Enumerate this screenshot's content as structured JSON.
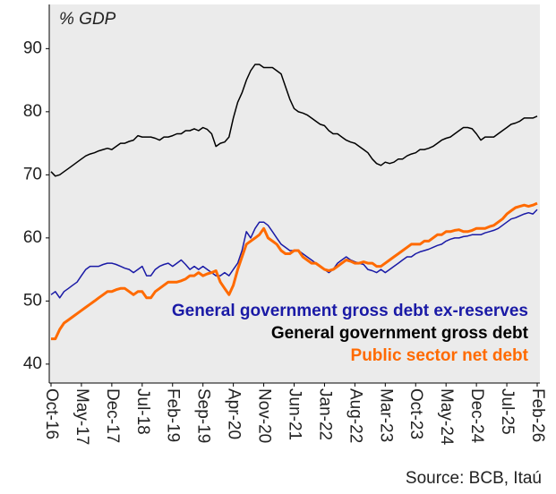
{
  "chart_data": {
    "type": "line",
    "y_label": "% GDP",
    "source": "Source: BCB, Itaú",
    "categories": [
      "Oct-16",
      null,
      null,
      null,
      null,
      null,
      null,
      "May-17",
      null,
      null,
      null,
      null,
      null,
      null,
      "Dec-17",
      null,
      null,
      null,
      null,
      null,
      null,
      "Jul-18",
      null,
      null,
      null,
      null,
      null,
      null,
      "Feb-19",
      null,
      null,
      null,
      null,
      null,
      null,
      "Sep-19",
      null,
      null,
      null,
      null,
      null,
      null,
      "Apr-20",
      null,
      null,
      null,
      null,
      null,
      null,
      "Nov-20",
      null,
      null,
      null,
      null,
      null,
      null,
      "Jun-21",
      null,
      null,
      null,
      null,
      null,
      null,
      "Jan-22",
      null,
      null,
      null,
      null,
      null,
      null,
      "Aug-22",
      null,
      null,
      null,
      null,
      null,
      null,
      "Mar-23",
      null,
      null,
      null,
      null,
      null,
      null,
      "Oct-23",
      null,
      null,
      null,
      null,
      null,
      null,
      "May-24",
      null,
      null,
      null,
      null,
      null,
      null,
      "Dec-24",
      null,
      null,
      null,
      null,
      null,
      null,
      "Jul-25",
      null,
      null,
      null,
      null,
      null,
      null,
      "Feb-26"
    ],
    "series": [
      {
        "name": "General government gross debt ex-reserves",
        "color": "#1a1aa6",
        "width": 1.5,
        "values": [
          51,
          51.5,
          50.5,
          51.5,
          52,
          52.5,
          53,
          54,
          55,
          55.5,
          55.5,
          55.5,
          55.8,
          56,
          56,
          55.8,
          55.5,
          55.2,
          55,
          54.5,
          55,
          55.5,
          54,
          54,
          55,
          55.5,
          55.8,
          56,
          55.5,
          56,
          56.5,
          55.8,
          55,
          55.5,
          55,
          55.5,
          55,
          54.5,
          54,
          54,
          54.5,
          54,
          55,
          56,
          58,
          61,
          60,
          61.5,
          62.5,
          62.5,
          62,
          61,
          60,
          59,
          58.5,
          58,
          58,
          58,
          57.5,
          57,
          56.5,
          56,
          55.5,
          55,
          54.5,
          55,
          56,
          56.5,
          57,
          56.5,
          56.2,
          56,
          55.8,
          55,
          54.8,
          54.5,
          55,
          54.5,
          55,
          55.5,
          56,
          56.5,
          57,
          57,
          57.5,
          57.8,
          58,
          58.2,
          58.5,
          58.8,
          59,
          59.5,
          59.8,
          60,
          60,
          60.2,
          60.3,
          60.5,
          60.5,
          60.5,
          60.8,
          61,
          61.2,
          61.5,
          62,
          62.5,
          63,
          63.2,
          63.5,
          63.8,
          64,
          63.8,
          64.5
        ]
      },
      {
        "name": "General government gross debt",
        "color": "#000000",
        "width": 1.5,
        "values": [
          70.5,
          69.8,
          70,
          70.5,
          71,
          71.5,
          72,
          72.5,
          73,
          73.3,
          73.5,
          73.8,
          74,
          74.2,
          74,
          74.5,
          75,
          75,
          75.3,
          75.5,
          76.2,
          76,
          76,
          76,
          75.8,
          75.5,
          76,
          76,
          76.2,
          76.5,
          76.5,
          77,
          77,
          77.3,
          77,
          77.5,
          77.2,
          76.5,
          74.5,
          75,
          75.2,
          76,
          79,
          81.5,
          83,
          85,
          86.5,
          87.5,
          87.5,
          87,
          87,
          87,
          86.5,
          86,
          84,
          82,
          80.5,
          80,
          79.8,
          79.5,
          79,
          78.5,
          78,
          77.8,
          77,
          76.5,
          76.5,
          76,
          75.5,
          75.2,
          75,
          74.5,
          74,
          73.5,
          72.5,
          71.8,
          71.5,
          72,
          71.8,
          72,
          72.5,
          72.5,
          73,
          73.3,
          73.5,
          74,
          74,
          74.2,
          74.5,
          75,
          75.5,
          75.8,
          76,
          76.5,
          77,
          77.5,
          77.5,
          77.3,
          76.5,
          75.5,
          76,
          76,
          76,
          76.5,
          77,
          77.5,
          78,
          78.2,
          78.5,
          79,
          79,
          79,
          79.3
        ]
      },
      {
        "name": "Public sector net debt",
        "color": "#ff6a00",
        "width": 3,
        "values": [
          44,
          44,
          45.5,
          46.5,
          47,
          47.5,
          48,
          48.5,
          49,
          49.5,
          50,
          50.5,
          51,
          51.5,
          51.5,
          51.8,
          52,
          52,
          51.5,
          51,
          51.5,
          51.5,
          50.5,
          50.5,
          51.5,
          52,
          52.5,
          53,
          53,
          53,
          53.2,
          53.5,
          54,
          54,
          54.5,
          54,
          54.3,
          54.5,
          54.8,
          53,
          52,
          51,
          52.5,
          55,
          57,
          59,
          59.5,
          60,
          60.5,
          61.5,
          60,
          59.5,
          59,
          58,
          57.5,
          57.5,
          58,
          58,
          57,
          56.5,
          56,
          56,
          55.5,
          55,
          54.8,
          55,
          55.5,
          56,
          56.5,
          56.3,
          56,
          56,
          56.2,
          56,
          56,
          55.5,
          55.5,
          56,
          56.5,
          57,
          57.5,
          58,
          58.5,
          59,
          59,
          59,
          59.5,
          59.5,
          60,
          60.5,
          60.5,
          61,
          61,
          61.2,
          61.3,
          61,
          61,
          61.2,
          61.5,
          61.5,
          61.5,
          61.8,
          62,
          62.5,
          63,
          63.8,
          64.3,
          64.8,
          65,
          65.2,
          65,
          65.2,
          65.5
        ]
      }
    ],
    "ylim": [
      37,
      97
    ],
    "yticks": [
      40,
      50,
      60,
      70,
      80,
      90
    ],
    "grid": false,
    "legend": "lower right",
    "background": "#ebebeb"
  }
}
